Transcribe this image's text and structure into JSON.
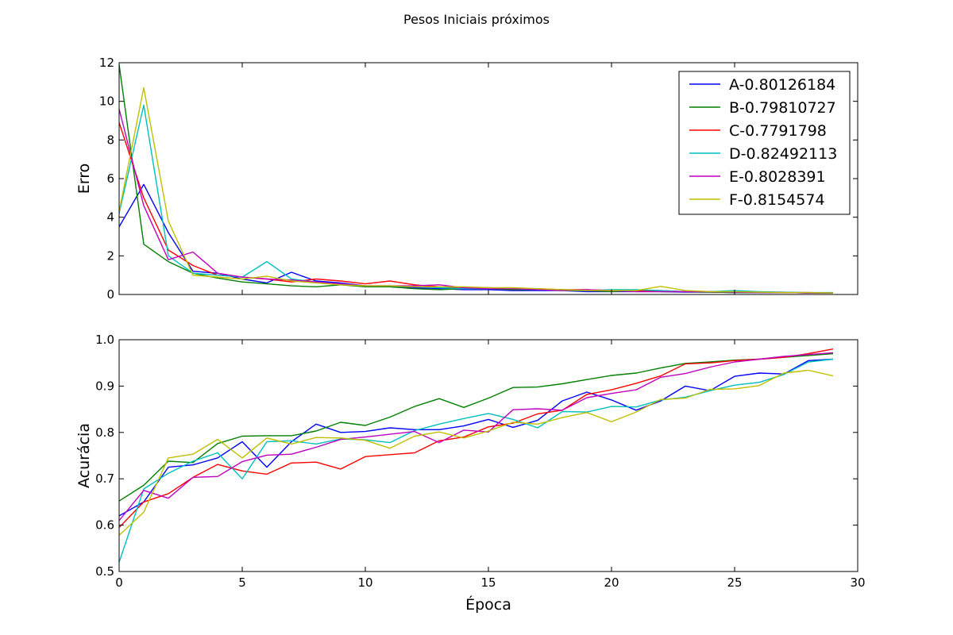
{
  "figure": {
    "title": "Pesos Iniciais próximos"
  },
  "chart_data": [
    {
      "type": "line",
      "ylabel": "Erro",
      "xlabel": "",
      "xlim": [
        0,
        30
      ],
      "ylim": [
        0,
        12
      ],
      "xticks": [
        0,
        5,
        10,
        15,
        20,
        25,
        30
      ],
      "yticks": [
        0,
        2,
        4,
        6,
        8,
        10,
        12
      ],
      "grid": false,
      "legend_position": "top-right",
      "x": [
        0,
        1,
        2,
        3,
        4,
        5,
        6,
        7,
        8,
        9,
        10,
        11,
        12,
        13,
        14,
        15,
        16,
        17,
        18,
        19,
        20,
        21,
        22,
        23,
        24,
        25,
        26,
        27,
        28,
        29
      ],
      "series": [
        {
          "name": "A-0.80126184",
          "color": "#0000ff",
          "values": [
            3.5,
            5.7,
            3.2,
            1.2,
            1.1,
            0.8,
            0.6,
            1.15,
            0.7,
            0.6,
            0.45,
            0.4,
            0.35,
            0.3,
            0.25,
            0.25,
            0.2,
            0.2,
            0.2,
            0.15,
            0.15,
            0.15,
            0.15,
            0.12,
            0.12,
            0.1,
            0.1,
            0.1,
            0.08,
            0.08
          ]
        },
        {
          "name": "B-0.79810727",
          "color": "#008000",
          "values": [
            11.9,
            2.6,
            1.7,
            1.1,
            0.85,
            0.65,
            0.55,
            0.45,
            0.4,
            0.5,
            0.4,
            0.4,
            0.3,
            0.25,
            0.3,
            0.3,
            0.25,
            0.25,
            0.2,
            0.2,
            0.15,
            0.2,
            0.15,
            0.15,
            0.12,
            0.1,
            0.1,
            0.1,
            0.08,
            0.08
          ]
        },
        {
          "name": "C-0.7791798",
          "color": "#ff0000",
          "values": [
            8.9,
            5.0,
            2.3,
            1.5,
            1.0,
            0.9,
            0.8,
            0.65,
            0.8,
            0.7,
            0.55,
            0.7,
            0.5,
            0.4,
            0.35,
            0.35,
            0.3,
            0.3,
            0.25,
            0.25,
            0.2,
            0.2,
            0.2,
            0.15,
            0.15,
            0.15,
            0.12,
            0.1,
            0.1,
            0.08
          ]
        },
        {
          "name": "D-0.82492113",
          "color": "#00bfbf",
          "values": [
            4.2,
            9.8,
            2.0,
            1.1,
            1.0,
            0.9,
            1.7,
            0.8,
            0.65,
            0.55,
            0.45,
            0.45,
            0.4,
            0.35,
            0.3,
            0.3,
            0.3,
            0.25,
            0.25,
            0.2,
            0.25,
            0.25,
            0.2,
            0.15,
            0.15,
            0.2,
            0.15,
            0.12,
            0.1,
            0.1
          ]
        },
        {
          "name": "E-0.8028391",
          "color": "#bf00bf",
          "values": [
            9.6,
            4.6,
            1.8,
            2.2,
            1.1,
            0.9,
            0.8,
            0.75,
            0.65,
            0.55,
            0.45,
            0.45,
            0.45,
            0.5,
            0.35,
            0.3,
            0.3,
            0.25,
            0.2,
            0.25,
            0.2,
            0.15,
            0.15,
            0.15,
            0.15,
            0.12,
            0.1,
            0.1,
            0.08,
            0.08
          ]
        },
        {
          "name": "F-0.8154574",
          "color": "#bfbf00",
          "values": [
            4.3,
            10.7,
            3.8,
            1.0,
            0.9,
            0.8,
            0.95,
            0.7,
            0.6,
            0.5,
            0.45,
            0.45,
            0.4,
            0.4,
            0.4,
            0.35,
            0.35,
            0.3,
            0.25,
            0.2,
            0.2,
            0.2,
            0.42,
            0.2,
            0.15,
            0.15,
            0.12,
            0.1,
            0.1,
            0.08
          ]
        }
      ]
    },
    {
      "type": "line",
      "ylabel": "Acurácia",
      "xlabel": "Época",
      "xlim": [
        0,
        30
      ],
      "ylim": [
        0.5,
        1.0
      ],
      "xticks": [
        0,
        5,
        10,
        15,
        20,
        25,
        30
      ],
      "yticks": [
        0.5,
        0.6,
        0.7,
        0.8,
        0.9,
        1.0
      ],
      "grid": false,
      "x": [
        0,
        1,
        2,
        3,
        4,
        5,
        6,
        7,
        8,
        9,
        10,
        11,
        12,
        13,
        14,
        15,
        16,
        17,
        18,
        19,
        20,
        21,
        22,
        23,
        24,
        25,
        26,
        27,
        28,
        29
      ],
      "series": [
        {
          "name": "A-0.80126184",
          "color": "#0000ff",
          "values": [
            0.62,
            0.65,
            0.725,
            0.73,
            0.745,
            0.78,
            0.725,
            0.78,
            0.818,
            0.8,
            0.802,
            0.81,
            0.806,
            0.806,
            0.814,
            0.828,
            0.811,
            0.826,
            0.868,
            0.887,
            0.87,
            0.848,
            0.868,
            0.9,
            0.89,
            0.921,
            0.928,
            0.926,
            0.955,
            0.958
          ]
        },
        {
          "name": "B-0.79810727",
          "color": "#008000",
          "values": [
            0.652,
            0.686,
            0.738,
            0.735,
            0.776,
            0.792,
            0.793,
            0.793,
            0.803,
            0.822,
            0.815,
            0.833,
            0.856,
            0.873,
            0.854,
            0.874,
            0.897,
            0.898,
            0.905,
            0.914,
            0.923,
            0.928,
            0.939,
            0.949,
            0.952,
            0.956,
            0.958,
            0.962,
            0.966,
            0.97
          ]
        },
        {
          "name": "C-0.7791798",
          "color": "#ff0000",
          "values": [
            0.595,
            0.65,
            0.668,
            0.703,
            0.731,
            0.717,
            0.71,
            0.734,
            0.736,
            0.721,
            0.748,
            0.752,
            0.756,
            0.782,
            0.79,
            0.812,
            0.82,
            0.84,
            0.848,
            0.882,
            0.892,
            0.906,
            0.922,
            0.948,
            0.95,
            0.955,
            0.958,
            0.962,
            0.97,
            0.98
          ]
        },
        {
          "name": "D-0.82492113",
          "color": "#00bfbf",
          "values": [
            0.52,
            0.678,
            0.712,
            0.738,
            0.756,
            0.7,
            0.78,
            0.782,
            0.775,
            0.786,
            0.784,
            0.778,
            0.804,
            0.818,
            0.83,
            0.841,
            0.828,
            0.81,
            0.845,
            0.844,
            0.856,
            0.855,
            0.87,
            0.876,
            0.89,
            0.902,
            0.908,
            0.925,
            0.952,
            0.958
          ]
        },
        {
          "name": "E-0.8028391",
          "color": "#bf00bf",
          "values": [
            0.61,
            0.675,
            0.658,
            0.703,
            0.705,
            0.737,
            0.751,
            0.753,
            0.768,
            0.785,
            0.79,
            0.796,
            0.802,
            0.778,
            0.805,
            0.801,
            0.849,
            0.851,
            0.848,
            0.875,
            0.884,
            0.892,
            0.919,
            0.927,
            0.941,
            0.952,
            0.958,
            0.964,
            0.968,
            0.972
          ]
        },
        {
          "name": "F-0.8154574",
          "color": "#bfbf00",
          "values": [
            0.578,
            0.628,
            0.745,
            0.753,
            0.785,
            0.745,
            0.788,
            0.775,
            0.789,
            0.788,
            0.783,
            0.766,
            0.792,
            0.801,
            0.788,
            0.803,
            0.822,
            0.818,
            0.832,
            0.843,
            0.823,
            0.844,
            0.871,
            0.874,
            0.893,
            0.894,
            0.901,
            0.928,
            0.934,
            0.922
          ]
        }
      ]
    }
  ]
}
